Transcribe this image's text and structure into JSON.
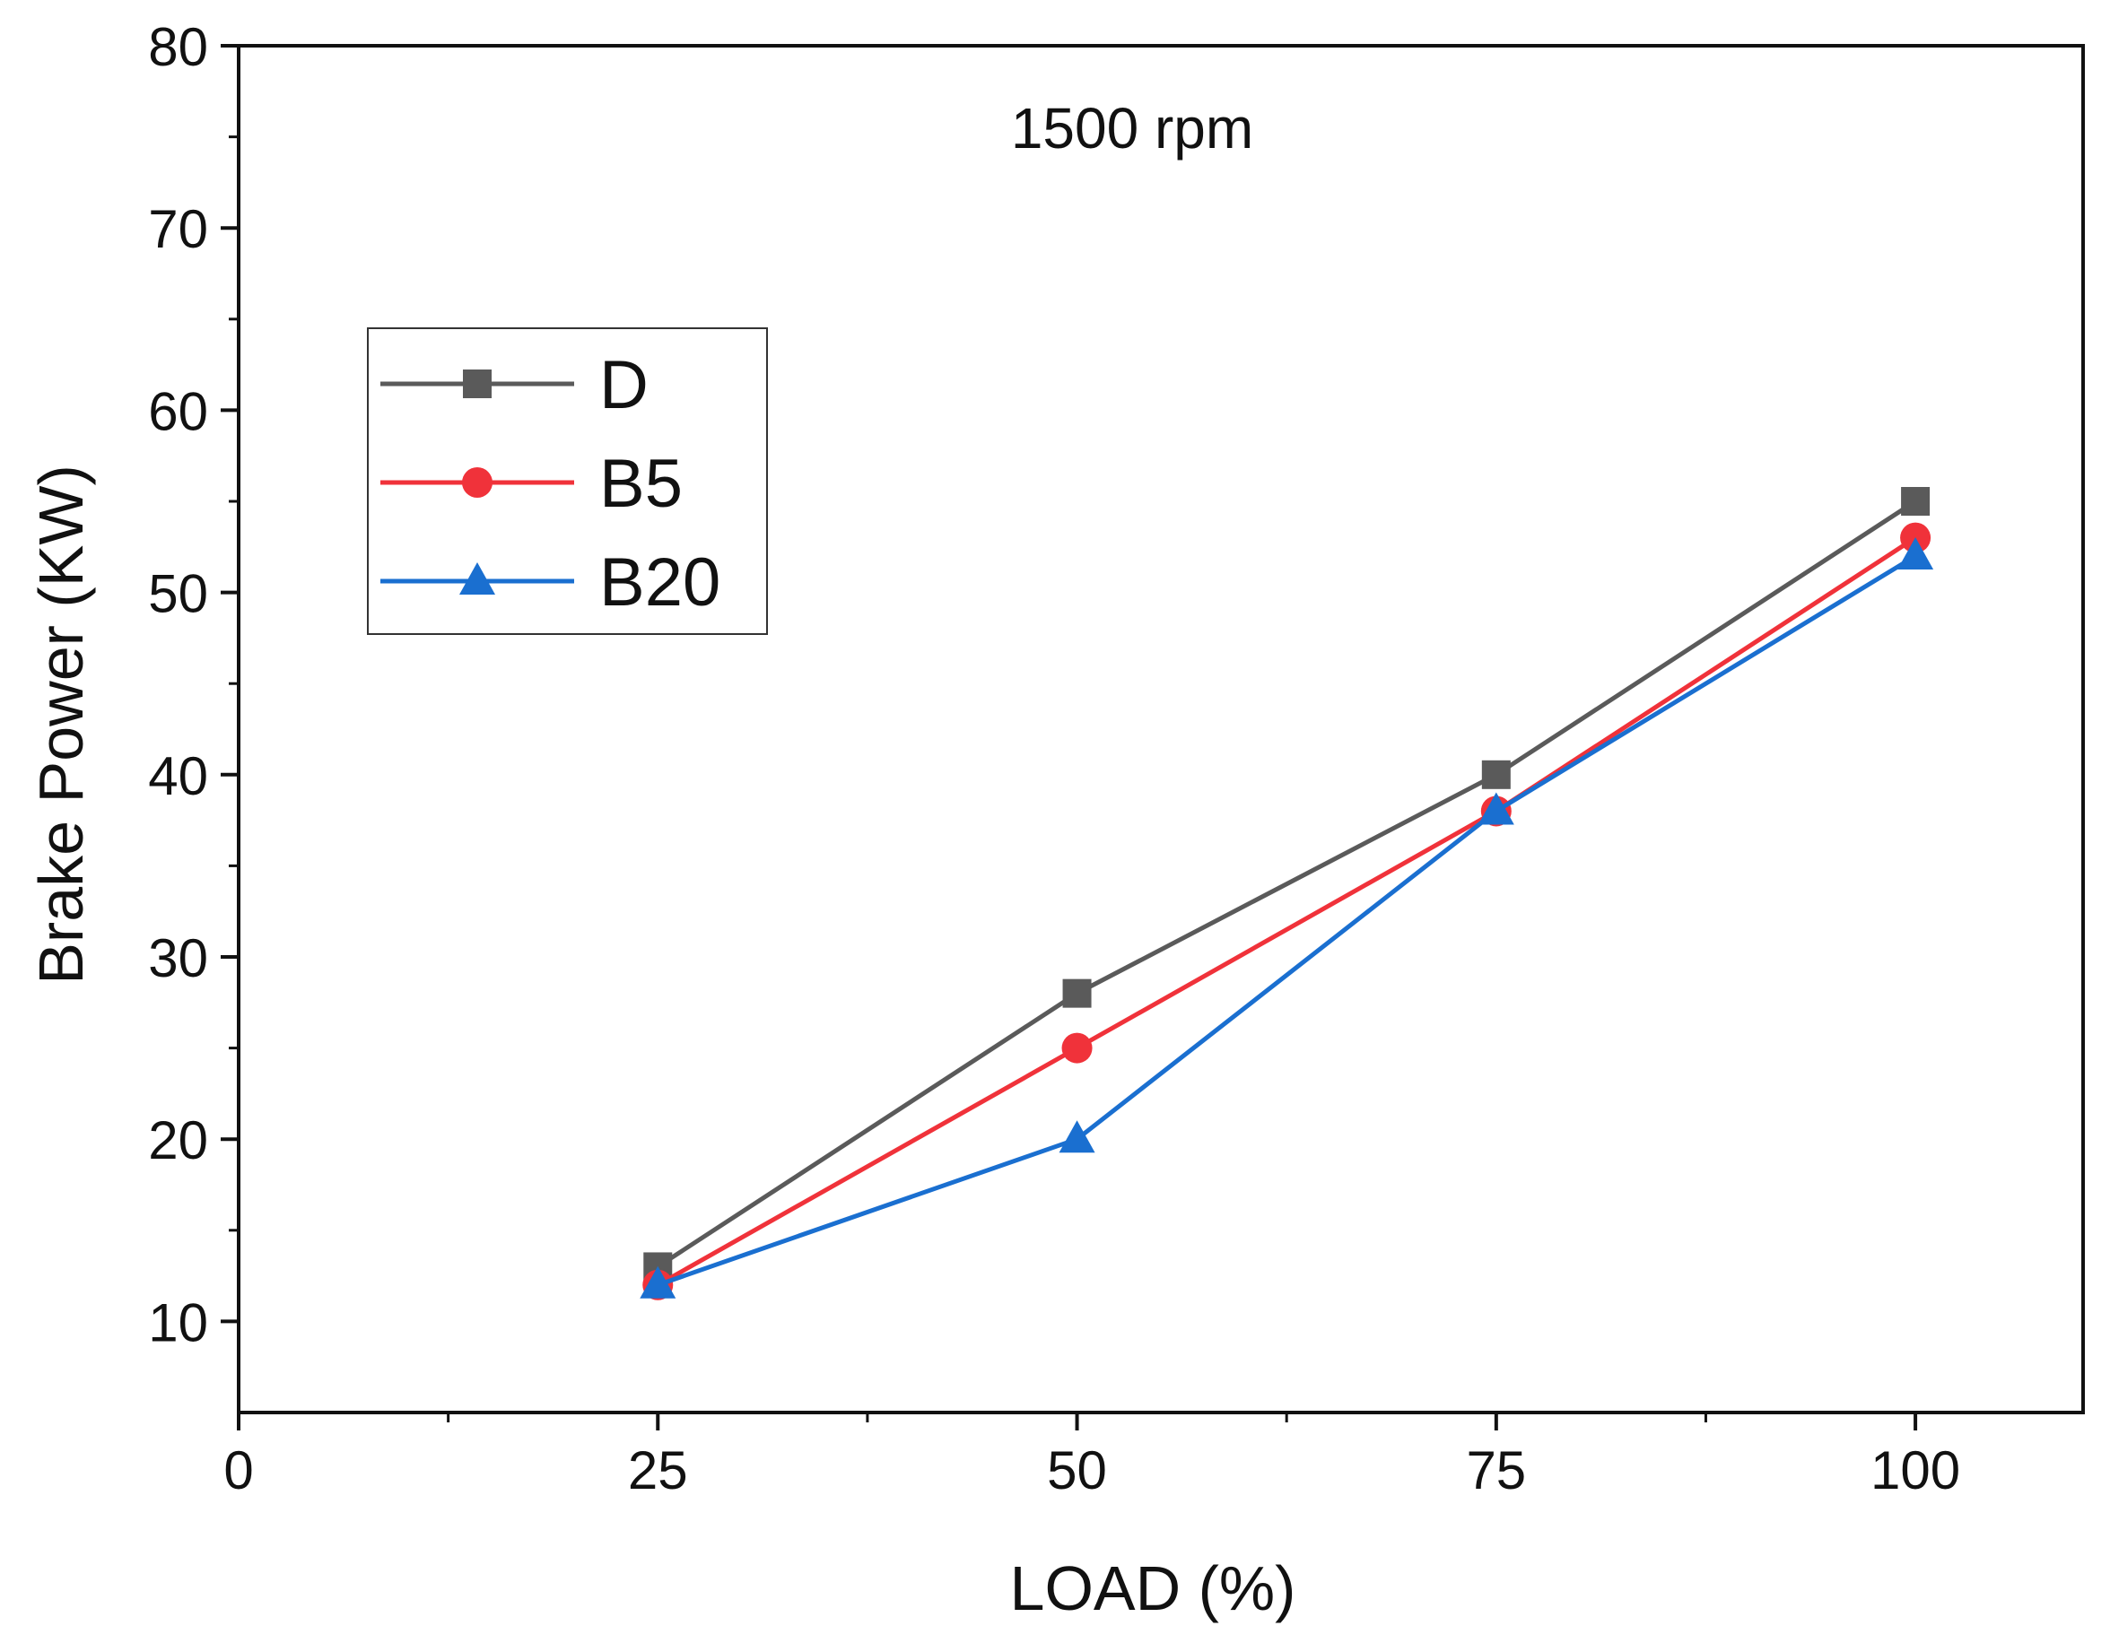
{
  "chart_data": {
    "type": "line",
    "annotation": "1500 rpm",
    "xlabel": "LOAD (%)",
    "ylabel": "Brake Power (KW)",
    "xlim": [
      0,
      110
    ],
    "ylim": [
      5,
      80
    ],
    "xticks": [
      0,
      25,
      50,
      75,
      100
    ],
    "yticks": [
      10,
      20,
      30,
      40,
      50,
      60,
      70,
      80
    ],
    "legend_position": "upper-left",
    "grid": false,
    "series": [
      {
        "name": "D",
        "marker": "square",
        "color": "#5a5a5a",
        "x": [
          25,
          50,
          75,
          100
        ],
        "values": [
          13,
          28,
          40,
          55
        ]
      },
      {
        "name": "B5",
        "marker": "circle",
        "color": "#f0323a",
        "x": [
          25,
          50,
          75,
          100
        ],
        "values": [
          12,
          25,
          38,
          53
        ]
      },
      {
        "name": "B20",
        "marker": "triangle",
        "color": "#1a6fd0",
        "x": [
          25,
          50,
          75,
          100
        ],
        "values": [
          12,
          20,
          38,
          52
        ]
      }
    ]
  }
}
